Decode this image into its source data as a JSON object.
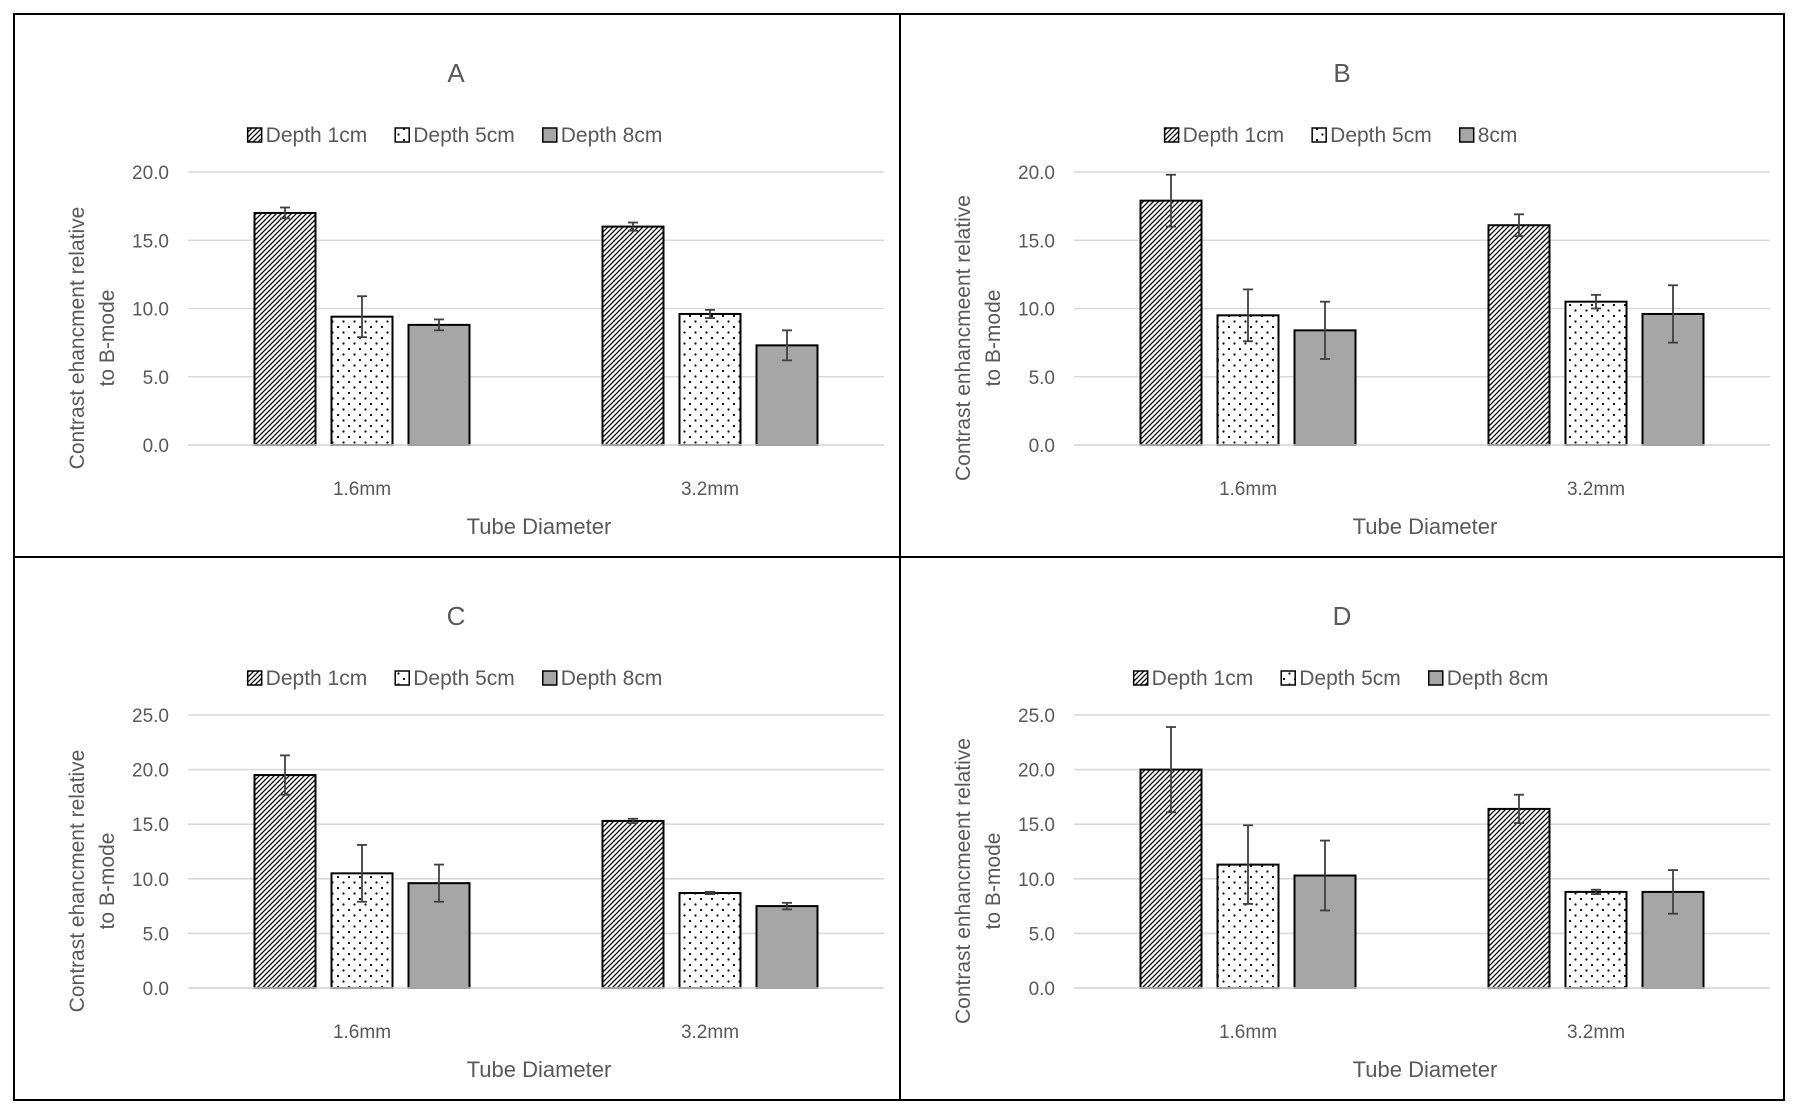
{
  "colors": {
    "border": "#000000",
    "grid": "#d9d9d9",
    "text": "#595959",
    "bar_outline": "#000000",
    "solid_fill": "#a6a6a6",
    "error_bar": "#404040"
  },
  "chart_data": [
    {
      "type": "bar",
      "title": "A",
      "xlabel": "Tube Diameter",
      "ylabel_lines": [
        "Contrast ehancment relative",
        "to B-mode"
      ],
      "categories": [
        "1.6mm",
        "3.2mm"
      ],
      "ylim": [
        0,
        20
      ],
      "yticks": [
        "0.0",
        "5.0",
        "10.0",
        "15.0",
        "20.0"
      ],
      "grid": true,
      "legend_position": "top",
      "series": [
        {
          "name": "Depth 1cm",
          "pattern": "hatch",
          "values": [
            17.0,
            16.0
          ],
          "errors": [
            0.4,
            0.3
          ]
        },
        {
          "name": "Depth 5cm",
          "pattern": "dots",
          "values": [
            9.4,
            9.6
          ],
          "errors": [
            1.5,
            0.3
          ]
        },
        {
          "name": "Depth 8cm",
          "pattern": "solid",
          "values": [
            8.8,
            7.3
          ],
          "errors": [
            0.4,
            1.1
          ]
        }
      ]
    },
    {
      "type": "bar",
      "title": "B",
      "xlabel": "Tube Diameter",
      "ylabel_lines": [
        "Contrast enhancmeent  relative",
        "to B-mode"
      ],
      "categories": [
        "1.6mm",
        "3.2mm"
      ],
      "ylim": [
        0,
        20
      ],
      "yticks": [
        "0.0",
        "5.0",
        "10.0",
        "15.0",
        "20.0"
      ],
      "grid": true,
      "legend_position": "top",
      "series": [
        {
          "name": "Depth 1cm",
          "pattern": "hatch",
          "values": [
            17.9,
            16.1
          ],
          "errors": [
            1.9,
            0.8
          ]
        },
        {
          "name": "Depth 5cm",
          "pattern": "dots",
          "values": [
            9.5,
            10.5
          ],
          "errors": [
            1.9,
            0.5
          ]
        },
        {
          "name": "8cm",
          "pattern": "solid",
          "values": [
            8.4,
            9.6
          ],
          "errors": [
            2.1,
            2.1
          ]
        }
      ]
    },
    {
      "type": "bar",
      "title": "C",
      "xlabel": "Tube Diameter",
      "ylabel_lines": [
        "Contrast ehancment relative",
        "to B-mode"
      ],
      "categories": [
        "1.6mm",
        "3.2mm"
      ],
      "ylim": [
        0,
        25
      ],
      "yticks": [
        "0.0",
        "5.0",
        "10.0",
        "15.0",
        "20.0",
        "25.0"
      ],
      "grid": true,
      "legend_position": "top",
      "series": [
        {
          "name": "Depth 1cm",
          "pattern": "hatch",
          "values": [
            19.5,
            15.3
          ],
          "errors": [
            1.8,
            0.2
          ]
        },
        {
          "name": "Depth 5cm",
          "pattern": "dots",
          "values": [
            10.5,
            8.7
          ],
          "errors": [
            2.6,
            0.1
          ]
        },
        {
          "name": "Depth 8cm",
          "pattern": "solid",
          "values": [
            9.6,
            7.5
          ],
          "errors": [
            1.7,
            0.3
          ]
        }
      ]
    },
    {
      "type": "bar",
      "title": "D",
      "xlabel": "Tube Diameter",
      "ylabel_lines": [
        "Contrast enhancmeent  relative",
        "to B-mode"
      ],
      "categories": [
        "1.6mm",
        "3.2mm"
      ],
      "ylim": [
        0,
        25
      ],
      "yticks": [
        "0.0",
        "5.0",
        "10.0",
        "15.0",
        "20.0",
        "25.0"
      ],
      "grid": true,
      "legend_position": "top",
      "series": [
        {
          "name": "Depth 1cm",
          "pattern": "hatch",
          "values": [
            20.0,
            16.4
          ],
          "errors": [
            3.9,
            1.3
          ]
        },
        {
          "name": "Depth 5cm",
          "pattern": "dots",
          "values": [
            11.3,
            8.8
          ],
          "errors": [
            3.6,
            0.2
          ]
        },
        {
          "name": "Depth 8cm",
          "pattern": "solid",
          "values": [
            10.3,
            8.8
          ],
          "errors": [
            3.2,
            2.0
          ]
        }
      ]
    }
  ]
}
